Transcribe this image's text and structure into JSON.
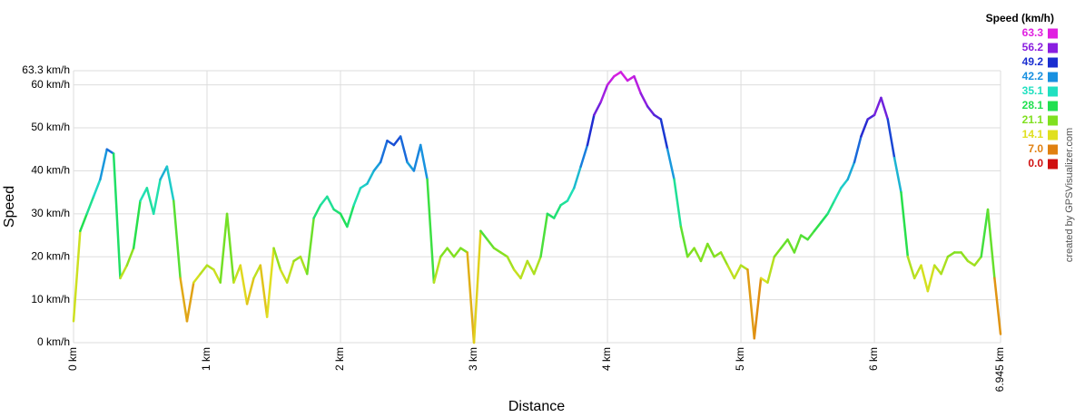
{
  "chart_data": {
    "type": "line",
    "x_label": "Distance",
    "y_label": "Speed",
    "credit": "created by GPSVisualizer.com",
    "x": [
      0,
      0.05,
      0.1,
      0.15,
      0.2,
      0.25,
      0.3,
      0.35,
      0.4,
      0.45,
      0.5,
      0.55,
      0.6,
      0.65,
      0.7,
      0.75,
      0.8,
      0.85,
      0.9,
      0.95,
      1,
      1.05,
      1.1,
      1.15,
      1.2,
      1.25,
      1.3,
      1.35,
      1.4,
      1.45,
      1.5,
      1.55,
      1.6,
      1.65,
      1.7,
      1.75,
      1.8,
      1.85,
      1.9,
      1.95,
      2,
      2.05,
      2.1,
      2.15,
      2.2,
      2.25,
      2.3,
      2.35,
      2.4,
      2.45,
      2.5,
      2.55,
      2.6,
      2.65,
      2.7,
      2.75,
      2.8,
      2.85,
      2.9,
      2.95,
      3,
      3.05,
      3.1,
      3.15,
      3.2,
      3.25,
      3.3,
      3.35,
      3.4,
      3.45,
      3.5,
      3.55,
      3.6,
      3.65,
      3.7,
      3.75,
      3.8,
      3.85,
      3.9,
      3.95,
      4,
      4.05,
      4.1,
      4.15,
      4.2,
      4.25,
      4.3,
      4.35,
      4.4,
      4.45,
      4.5,
      4.55,
      4.6,
      4.65,
      4.7,
      4.75,
      4.8,
      4.85,
      4.9,
      4.95,
      5,
      5.05,
      5.1,
      5.15,
      5.2,
      5.25,
      5.3,
      5.35,
      5.4,
      5.45,
      5.5,
      5.55,
      5.6,
      5.65,
      5.7,
      5.75,
      5.8,
      5.85,
      5.9,
      5.95,
      6,
      6.05,
      6.1,
      6.15,
      6.2,
      6.25,
      6.3,
      6.35,
      6.4,
      6.45,
      6.5,
      6.55,
      6.6,
      6.65,
      6.7,
      6.75,
      6.8,
      6.85,
      6.9,
      6.945
    ],
    "values": [
      5,
      26,
      30,
      34,
      38,
      45,
      44,
      15,
      18,
      22,
      33,
      36,
      30,
      38,
      41,
      33,
      15,
      5,
      14,
      16,
      18,
      17,
      14,
      30,
      14,
      18,
      9,
      15,
      18,
      6,
      22,
      17,
      14,
      19,
      20,
      16,
      29,
      32,
      34,
      31,
      30,
      27,
      32,
      36,
      37,
      40,
      42,
      47,
      46,
      48,
      42,
      40,
      46,
      38,
      14,
      20,
      22,
      20,
      22,
      21,
      0,
      26,
      24,
      22,
      21,
      20,
      17,
      15,
      19,
      16,
      20,
      30,
      29,
      32,
      33,
      36,
      41,
      46,
      53,
      56,
      60,
      62,
      63,
      61,
      62,
      58,
      55,
      53,
      52,
      45,
      38,
      27,
      20,
      22,
      19,
      23,
      20,
      21,
      18,
      15,
      18,
      17,
      1,
      15,
      14,
      20,
      22,
      24,
      21,
      25,
      24,
      26,
      28,
      30,
      33,
      36,
      38,
      42,
      48,
      52,
      53,
      57,
      52,
      43,
      35,
      20,
      15,
      18,
      12,
      18,
      16,
      20,
      21,
      21,
      19,
      18,
      20,
      31,
      15,
      2
    ],
    "xlim": [
      0,
      6.945
    ],
    "ylim": [
      0,
      63.3
    ],
    "xticks": [
      {
        "value": 0,
        "label": "0 km"
      },
      {
        "value": 1,
        "label": "1 km"
      },
      {
        "value": 2,
        "label": "2 km"
      },
      {
        "value": 3,
        "label": "3 km"
      },
      {
        "value": 4,
        "label": "4 km"
      },
      {
        "value": 5,
        "label": "5 km"
      },
      {
        "value": 6,
        "label": "6 km"
      },
      {
        "value": 6.945,
        "label": "6.945 km"
      }
    ],
    "yticks": [
      {
        "value": 0,
        "label": "0 km/h"
      },
      {
        "value": 10,
        "label": "10 km/h"
      },
      {
        "value": 20,
        "label": "20 km/h"
      },
      {
        "value": 30,
        "label": "30 km/h"
      },
      {
        "value": 40,
        "label": "40 km/h"
      },
      {
        "value": 50,
        "label": "50 km/h"
      },
      {
        "value": 60,
        "label": "60 km/h"
      },
      {
        "value": 63.3,
        "label": "63.3 km/h"
      }
    ],
    "grid": true,
    "legend": {
      "title": "Speed (km/h)",
      "stops": [
        63.3,
        56.2,
        49.2,
        42.2,
        35.1,
        28.1,
        21.1,
        14.1,
        {
          "value": 7,
          "label": "7.0"
        },
        {
          "value": 0,
          "label": "0.0"
        }
      ],
      "colors": [
        "#e020e0",
        "#8a1ee0",
        "#1a2ed0",
        "#1890e0",
        "#20e0c0",
        "#20e050",
        "#80e020",
        "#e0e020",
        "#e08010",
        "#d01010"
      ]
    }
  }
}
